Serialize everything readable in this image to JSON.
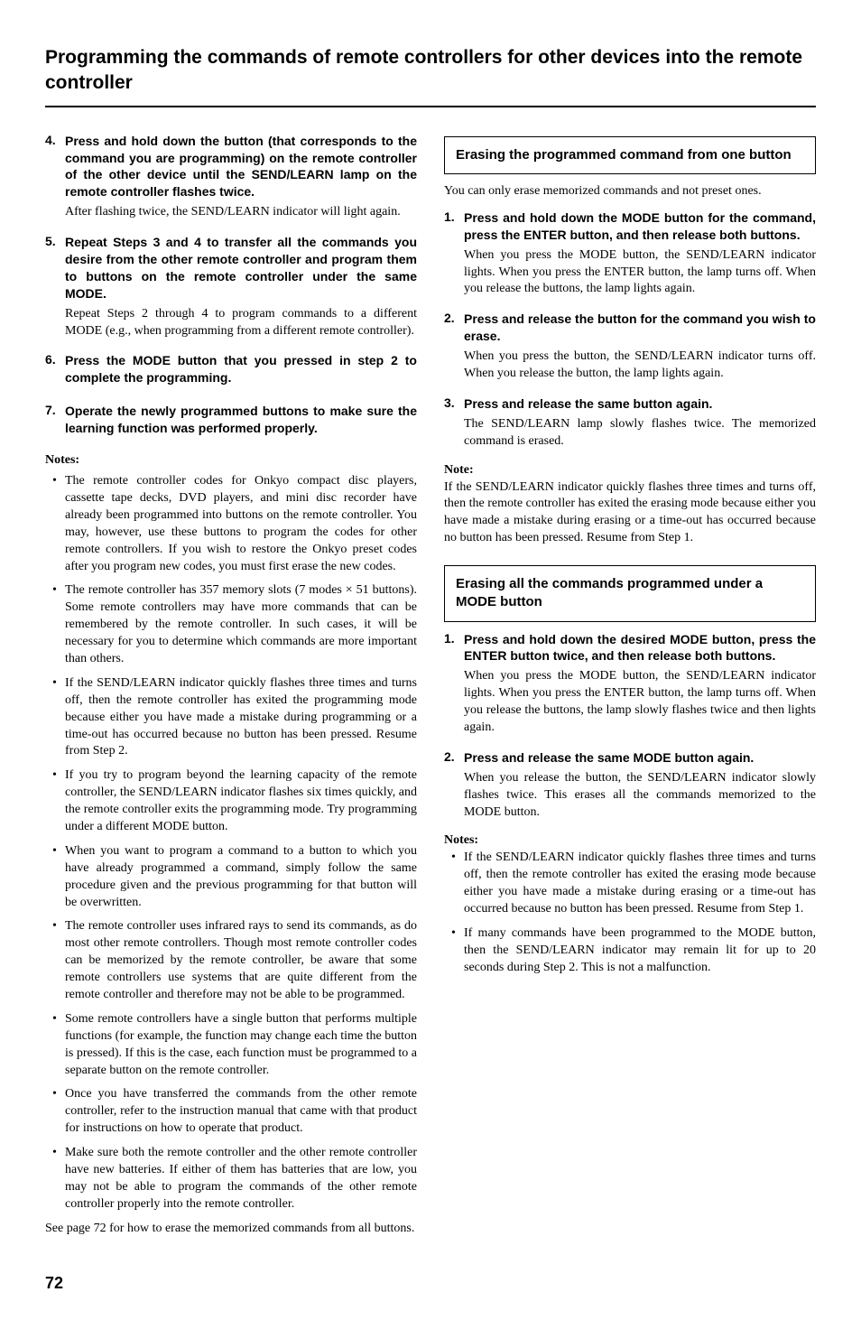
{
  "title": "Programming the commands of remote controllers for other devices into the remote controller",
  "pageNumber": "72",
  "left": {
    "steps": [
      {
        "num": "4.",
        "title": "Press and hold down the button (that corresponds to the command you are programming) on the remote controller of the other device until the SEND/LEARN lamp on the remote controller flashes twice.",
        "desc": "After flashing twice, the SEND/LEARN indicator will light again."
      },
      {
        "num": "5.",
        "title": "Repeat Steps 3 and 4 to transfer all the commands you desire from the other remote controller and program them to buttons on the remote controller under the same MODE.",
        "desc": "Repeat Steps 2 through 4 to program commands to a different MODE (e.g., when programming from a different remote controller)."
      },
      {
        "num": "6.",
        "title": "Press the MODE button that you pressed in step 2 to complete the programming.",
        "desc": ""
      },
      {
        "num": "7.",
        "title": "Operate the newly programmed buttons to make sure the learning function was performed properly.",
        "desc": ""
      }
    ],
    "notesHeader": "Notes:",
    "notes": [
      "The remote controller codes for Onkyo compact disc players, cassette tape decks, DVD players, and mini disc recorder have already been programmed into buttons on the remote controller. You may, however, use these buttons to program the codes for other remote controllers. If you wish to restore the Onkyo preset codes after you program new codes, you must first erase the new codes.",
      "The remote controller has 357 memory slots (7 modes × 51 buttons). Some remote controllers may have more commands that can be remembered by the remote controller. In such cases, it will be necessary for you to determine which commands are more important than others.",
      "If the SEND/LEARN indicator quickly flashes three times and turns off, then the remote controller has exited the programming mode because either you have made a mistake during programming or a time-out has occurred because no button has been pressed. Resume from Step 2.",
      "If you try to program beyond the learning capacity of the remote controller, the SEND/LEARN indicator flashes six times quickly, and the remote controller exits the programming mode. Try programming under a different MODE button.",
      "When you want to program a command to a button to which you have already programmed a command, simply follow the same procedure given and the previous programming for that button will be overwritten.",
      "The remote controller uses infrared rays to send its commands, as do most other remote controllers. Though most remote controller codes can be memorized by the remote controller, be aware that some remote controllers use systems that are quite different from the remote controller and therefore may not be able to be programmed.",
      "Some remote controllers have a single button that performs multiple functions (for example, the function may change each time the button is pressed). If this is the case, each function must be programmed to a separate button on the remote controller.",
      "Once you have transferred the commands from the other remote controller, refer to the instruction manual that came with that product for instructions on how to operate that product.",
      "Make sure both the remote controller and the other remote controller have new batteries. If either of them has batteries that are low, you may not be able to program the commands of the other remote controller properly into the remote controller."
    ],
    "trailing": "See page 72 for how to erase the memorized commands from all buttons."
  },
  "right": {
    "section1": {
      "boxTitle": "Erasing the programmed command from one button",
      "intro": "You can only erase memorized commands and not preset ones.",
      "steps": [
        {
          "num": "1.",
          "title": "Press and hold down the MODE button for the command, press the ENTER button, and then release both buttons.",
          "desc": "When you press the MODE button, the SEND/LEARN indicator lights. When you press the ENTER button, the lamp turns off. When you release the buttons, the lamp lights again."
        },
        {
          "num": "2.",
          "title": "Press and release the button for the command you wish to erase.",
          "desc": "When you press the button, the SEND/LEARN indicator turns off. When you release the button, the lamp lights again."
        },
        {
          "num": "3.",
          "title": "Press and release the same button again.",
          "desc": "The SEND/LEARN lamp slowly flashes twice. The memorized command is erased."
        }
      ],
      "noteHeader": "Note:",
      "note": "If the SEND/LEARN indicator quickly flashes three times and turns off, then the remote controller has exited the erasing mode because either you have made a mistake during erasing or a time-out has occurred because no button has been pressed. Resume from Step 1."
    },
    "section2": {
      "boxTitle": "Erasing all the commands programmed under a MODE button",
      "steps": [
        {
          "num": "1.",
          "title": "Press and hold down the desired MODE button, press the ENTER button twice, and then release both buttons.",
          "desc": "When you press the MODE button, the SEND/LEARN indicator lights. When you press the ENTER button, the lamp turns off. When you release the buttons, the lamp slowly flashes twice and then lights again."
        },
        {
          "num": "2.",
          "title": "Press and release the same MODE button again.",
          "desc": "When you release the button, the SEND/LEARN indicator slowly flashes twice. This erases all the commands memorized to the MODE button."
        }
      ],
      "notesHeader": "Notes:",
      "notes": [
        "If the SEND/LEARN indicator quickly flashes three times and turns off, then the remote controller has exited the erasing mode because either you have made a mistake during erasing or a time-out has occurred because no button has been pressed. Resume from Step 1.",
        "If many commands have been programmed to the MODE button, then the SEND/LEARN indicator may remain lit for up to 20 seconds during Step 2. This is not a malfunction."
      ]
    }
  }
}
